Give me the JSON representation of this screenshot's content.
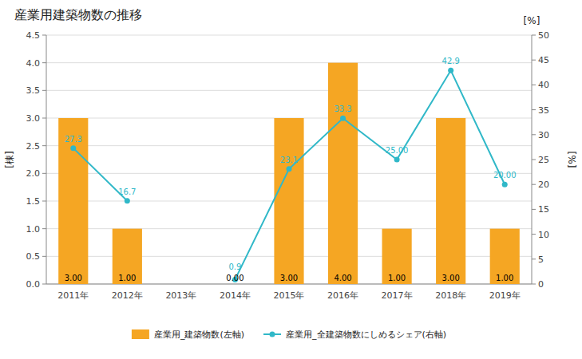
{
  "chart_data": {
    "type": "bar",
    "title": "産業用建築物数の推移",
    "y_label": "[棟]",
    "y2_label": "[%]",
    "annotations": [
      "[%]"
    ],
    "categories": [
      "2011年",
      "2012年",
      "2013年",
      "2014年",
      "2015年",
      "2016年",
      "2017年",
      "2018年",
      "2019年"
    ],
    "series": [
      {
        "name": "産業用_建築物数(左軸)",
        "type": "bar",
        "color": "#f5a623",
        "values": [
          3,
          1,
          0,
          0,
          3,
          4,
          1,
          3,
          1
        ],
        "value_labels": [
          "3.00",
          "1.00",
          null,
          "0.00",
          "3.00",
          "4.00",
          "1.00",
          "3.00",
          "1.00"
        ]
      },
      {
        "name": "産業用_全建築物数にしめるシェア(右軸)",
        "type": "line",
        "axis": "y2",
        "color": "#30b8c8",
        "marker": "circle",
        "values": [
          27.3,
          16.7,
          null,
          0.9,
          23.1,
          33.3,
          25.0,
          42.9,
          20.0
        ],
        "value_labels": [
          "27.3",
          "16.7",
          null,
          "0.9",
          "23.1",
          "33.3",
          "25.00",
          "42.9",
          "20.00"
        ]
      }
    ],
    "ylim": [
      0,
      4.5
    ],
    "yticks": [
      {
        "value": 0,
        "label": "0.0"
      },
      0.5,
      {
        "value": 1,
        "label": "1.0"
      },
      1.5,
      {
        "value": 2,
        "label": "2.0"
      },
      2.5,
      {
        "value": 3,
        "label": "3.0"
      },
      3.5,
      {
        "value": 4,
        "label": "4.0"
      },
      4.5
    ],
    "y2lim": [
      0,
      50
    ],
    "y2ticks": [
      0,
      5,
      10,
      15,
      20,
      25,
      30,
      35,
      40,
      45,
      50
    ],
    "grid": true,
    "data_labels": true,
    "legend": "bottom"
  }
}
